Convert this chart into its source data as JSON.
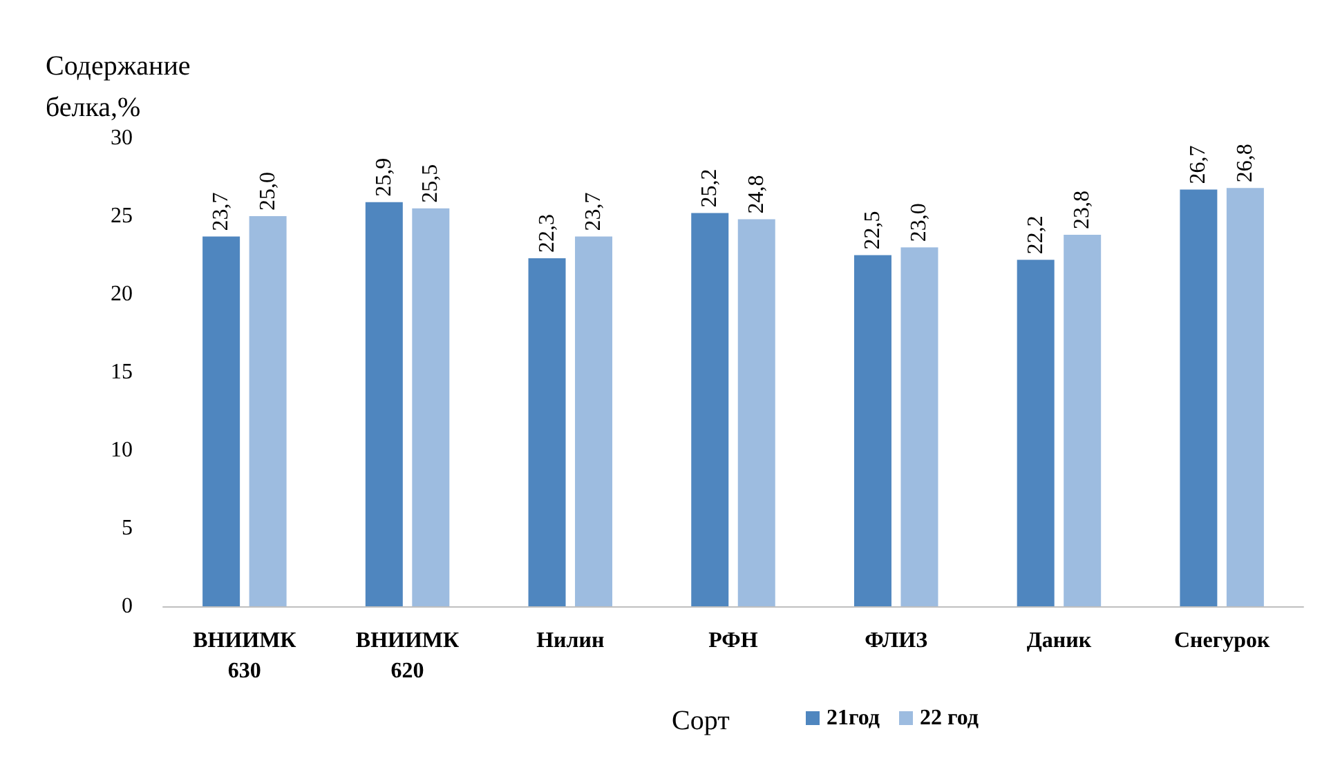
{
  "chart_data": {
    "type": "bar",
    "ylabel": "Содержание белка,%",
    "categories": [
      "ВНИИМК 630",
      "ВНИИМК 620",
      "Нилин",
      "РФН",
      "ФЛИЗ",
      "Даник",
      "Снегурок"
    ],
    "series": [
      {
        "name": "21год",
        "color": "#4f86bf",
        "values": [
          23.7,
          25.9,
          22.3,
          25.2,
          22.5,
          22.2,
          26.7
        ],
        "value_labels": [
          "23,7",
          "25,9",
          "22,3",
          "25,2",
          "22,5",
          "22,2",
          "26,7"
        ]
      },
      {
        "name": "22 год",
        "color": "#9dbce0",
        "values": [
          25.0,
          25.5,
          23.7,
          24.8,
          23.0,
          23.8,
          26.8
        ],
        "value_labels": [
          "25,0",
          "25,5",
          "23,7",
          "24,8",
          "23,0",
          "23,8",
          "26,8"
        ]
      }
    ],
    "legend_title": "Сорт",
    "legend": "bottom",
    "ylim": [
      0,
      30
    ],
    "yticks": [
      0,
      5,
      10,
      15,
      20,
      25,
      30
    ],
    "grid": false
  }
}
